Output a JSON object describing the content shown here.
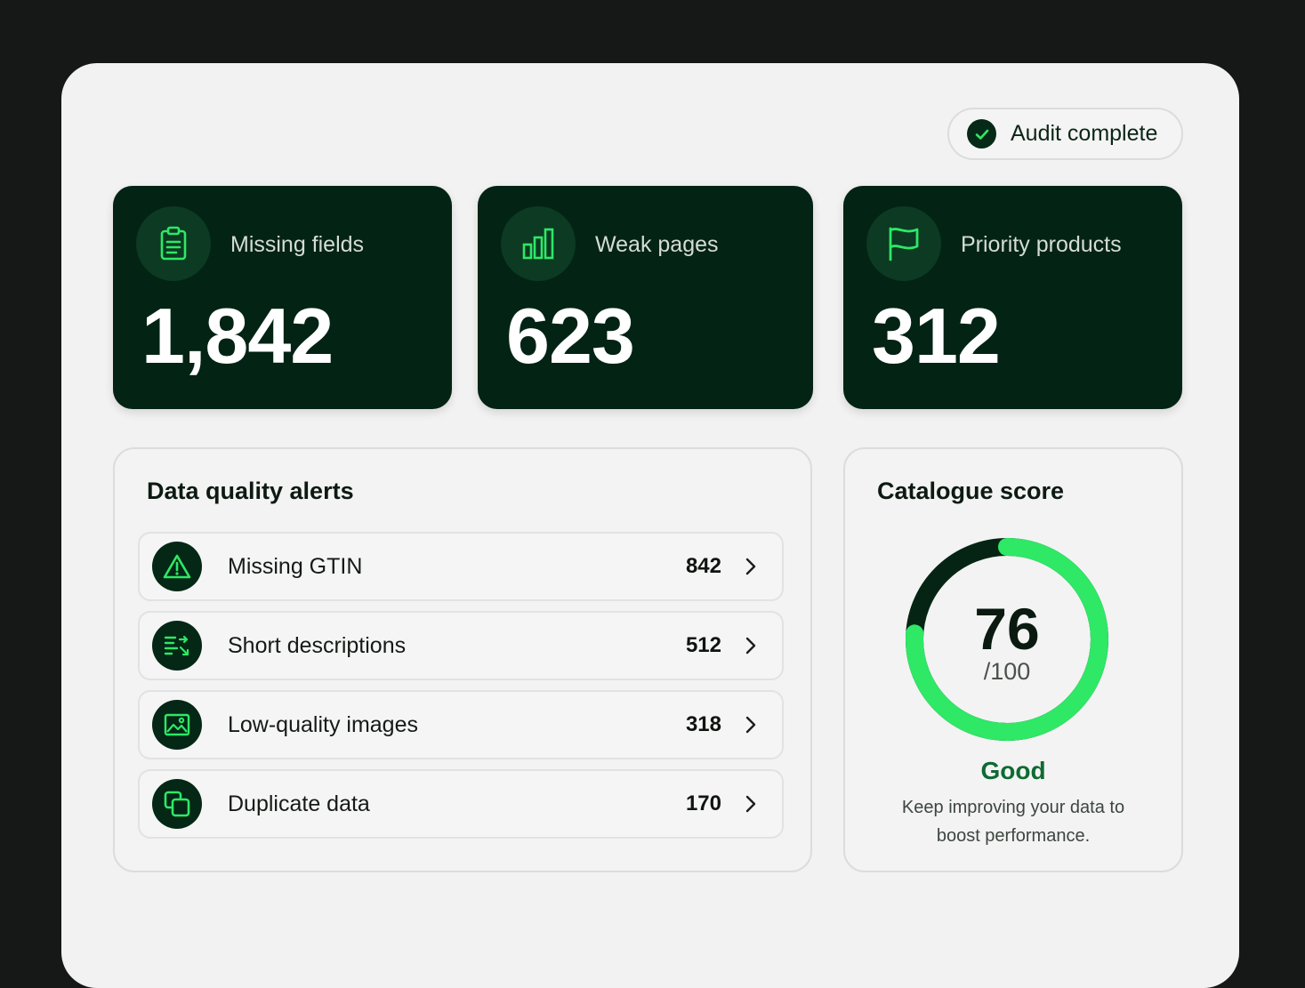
{
  "status_badge": {
    "label": "Audit complete"
  },
  "stats": [
    {
      "title": "Missing fields",
      "value": "1,842",
      "icon": "clipboard-icon"
    },
    {
      "title": "Weak pages",
      "value": "623",
      "icon": "bar-chart-icon"
    },
    {
      "title": "Priority products",
      "value": "312",
      "icon": "flag-icon"
    }
  ],
  "alerts": {
    "title": "Data quality alerts",
    "items": [
      {
        "label": "Missing GTIN",
        "count": "842",
        "icon": "warning-icon"
      },
      {
        "label": "Short descriptions",
        "count": "512",
        "icon": "text-lines-icon"
      },
      {
        "label": "Low-quality images",
        "count": "318",
        "icon": "image-icon"
      },
      {
        "label": "Duplicate data",
        "count": "170",
        "icon": "copy-icon"
      }
    ]
  },
  "score": {
    "title": "Catalogue score",
    "value": "76",
    "max_label": "/100",
    "fraction": 0.76,
    "status": "Good",
    "description": "Keep improving your data to boost performance."
  },
  "colors": {
    "accent": "#2ee866",
    "card_dark": "#032314",
    "status_text": "#0f6a33",
    "ring_track": "#062414"
  }
}
